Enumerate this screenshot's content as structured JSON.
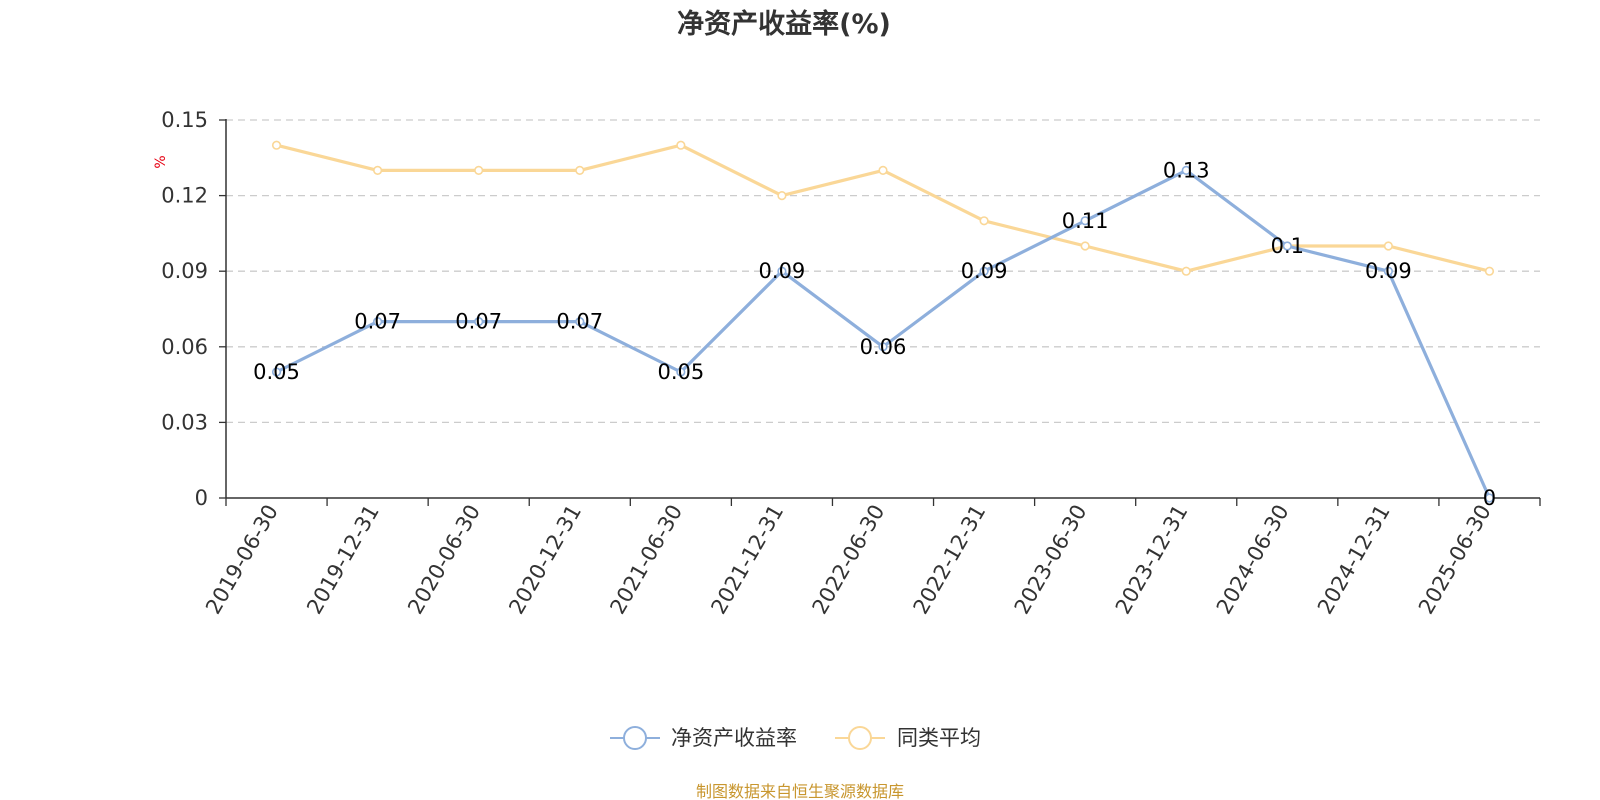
{
  "chart_data": {
    "type": "line",
    "title": "净资产收益率(%)",
    "ylabel": "%",
    "xlabel": "",
    "categories": [
      "2019-06-30",
      "2019-12-31",
      "2020-06-30",
      "2020-12-31",
      "2021-06-30",
      "2021-12-31",
      "2022-06-30",
      "2022-12-31",
      "2023-06-30",
      "2023-12-31",
      "2024-06-30",
      "2024-12-31",
      "2025-06-30"
    ],
    "ylim": [
      0,
      0.15
    ],
    "yticks": [
      "0",
      "0.03",
      "0.06",
      "0.09",
      "0.12",
      "0.15"
    ],
    "grid": true,
    "legend_position": "bottom-center",
    "series": [
      {
        "name": "净资产收益率",
        "color": "#8eafdc",
        "values": [
          0.05,
          0.07,
          0.07,
          0.07,
          0.05,
          0.09,
          0.06,
          0.09,
          0.11,
          0.13,
          0.1,
          0.09,
          0
        ],
        "labels": [
          "0.05",
          "0.07",
          "0.07",
          "0.07",
          "0.05",
          "0.09",
          "0.06",
          "0.09",
          "0.11",
          "0.13",
          "0.1",
          "0.09",
          "0"
        ]
      },
      {
        "name": "同类平均",
        "color": "#fad797",
        "values": [
          0.14,
          0.13,
          0.13,
          0.13,
          0.14,
          0.12,
          0.13,
          0.11,
          0.1,
          0.09,
          0.1,
          0.1,
          0.09
        ]
      }
    ],
    "source": "制图数据来自恒生聚源数据库",
    "colors": {
      "unit": "#e60012",
      "source": "#c8962e",
      "axis": "#333333",
      "grid": "#cccccc"
    }
  }
}
